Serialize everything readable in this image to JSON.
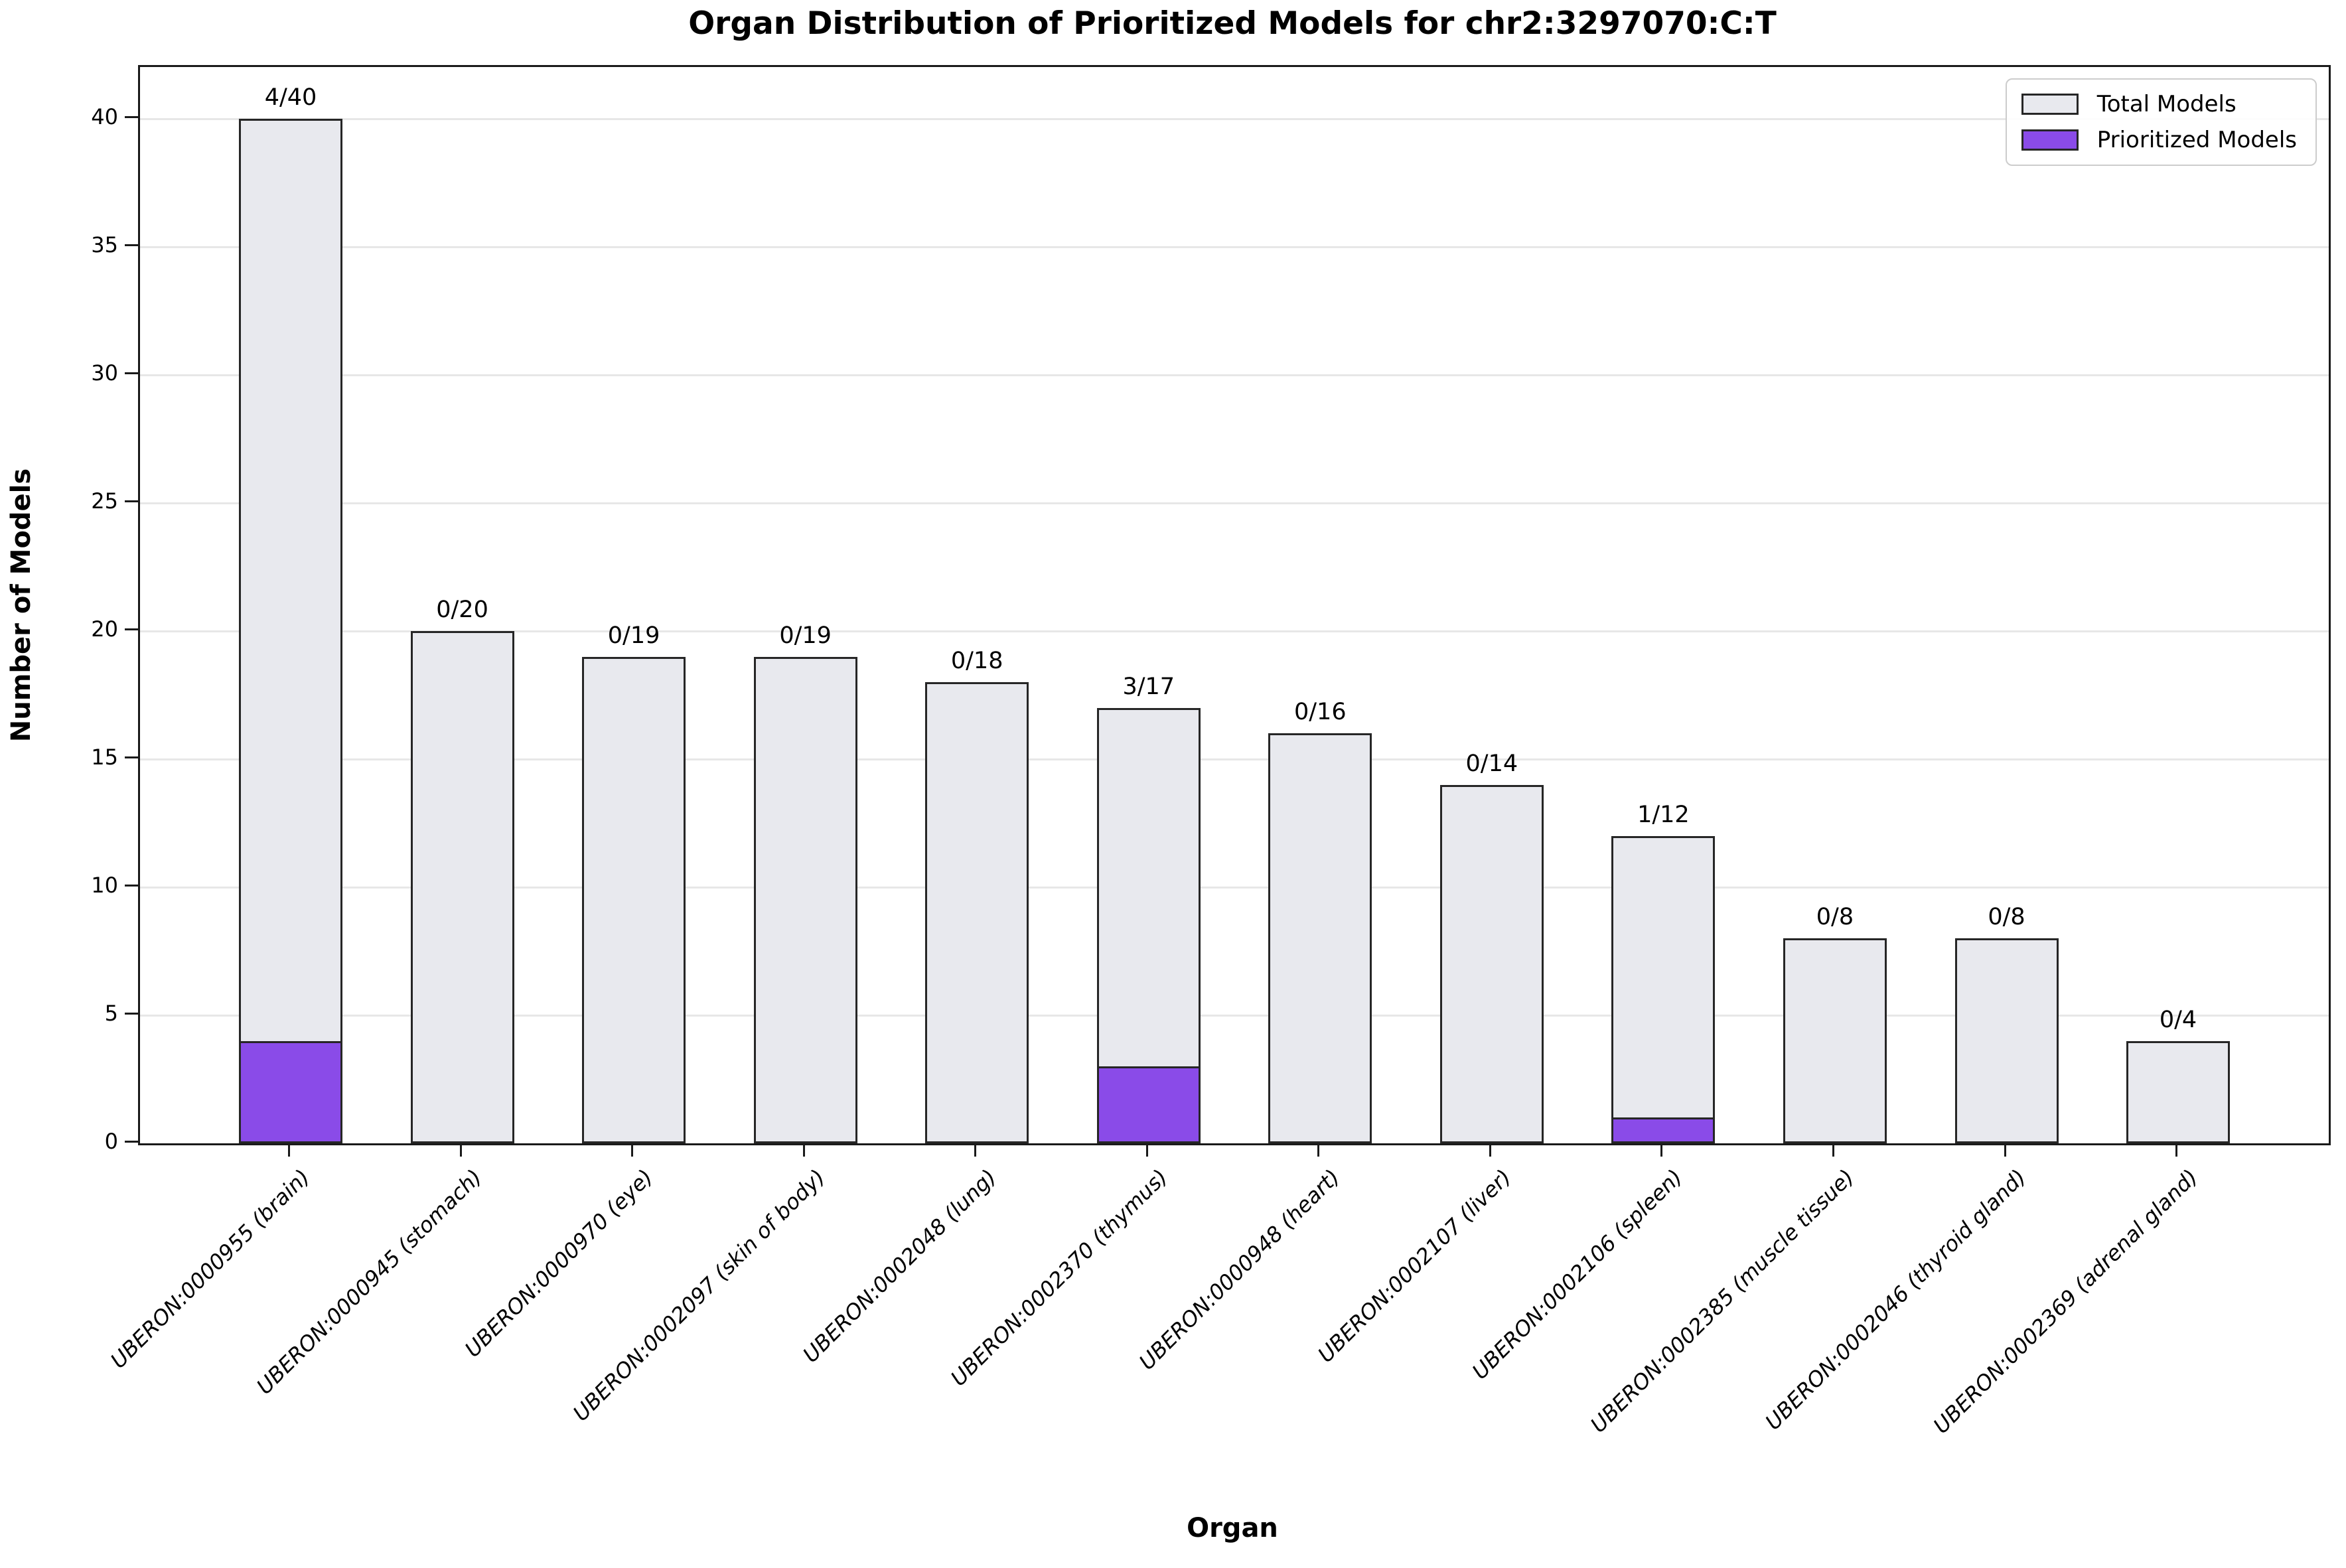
{
  "chart_data": {
    "type": "bar",
    "title": "Organ Distribution of Prioritized Models for chr2:3297070:C:T",
    "xlabel": "Organ",
    "ylabel": "Number of Models",
    "ylim": [
      0,
      42
    ],
    "yticks": [
      0,
      5,
      10,
      15,
      20,
      25,
      30,
      35,
      40
    ],
    "grid": "horizontal",
    "categories": [
      "UBERON:0000955 (brain)",
      "UBERON:0000945 (stomach)",
      "UBERON:0000970 (eye)",
      "UBERON:0002097 (skin of body)",
      "UBERON:0002048 (lung)",
      "UBERON:0002370 (thymus)",
      "UBERON:0000948 (heart)",
      "UBERON:0002107 (liver)",
      "UBERON:0002106 (spleen)",
      "UBERON:0002385 (muscle tissue)",
      "UBERON:0002046 (thyroid gland)",
      "UBERON:0002369 (adrenal gland)"
    ],
    "series": [
      {
        "name": "Total Models",
        "color": "#E8E9EE",
        "values": [
          40,
          20,
          19,
          19,
          18,
          17,
          16,
          14,
          12,
          8,
          8,
          4
        ]
      },
      {
        "name": "Prioritized Models",
        "color": "#8A4BE8",
        "values": [
          4,
          0,
          0,
          0,
          0,
          3,
          0,
          0,
          1,
          0,
          0,
          0
        ]
      }
    ],
    "bar_labels": [
      "4/40",
      "0/20",
      "0/19",
      "0/19",
      "0/18",
      "3/17",
      "0/16",
      "0/14",
      "1/12",
      "0/8",
      "0/8",
      "0/4"
    ],
    "legend": {
      "position": "upper right",
      "entries": [
        {
          "label": "Total Models",
          "color": "#E8E9EE"
        },
        {
          "label": "Prioritized Models",
          "color": "#8A4BE8"
        }
      ]
    },
    "colors": {
      "bar_edge": "#262626",
      "grid": "#e7e7e7",
      "spine": "#1a1a1a"
    }
  }
}
